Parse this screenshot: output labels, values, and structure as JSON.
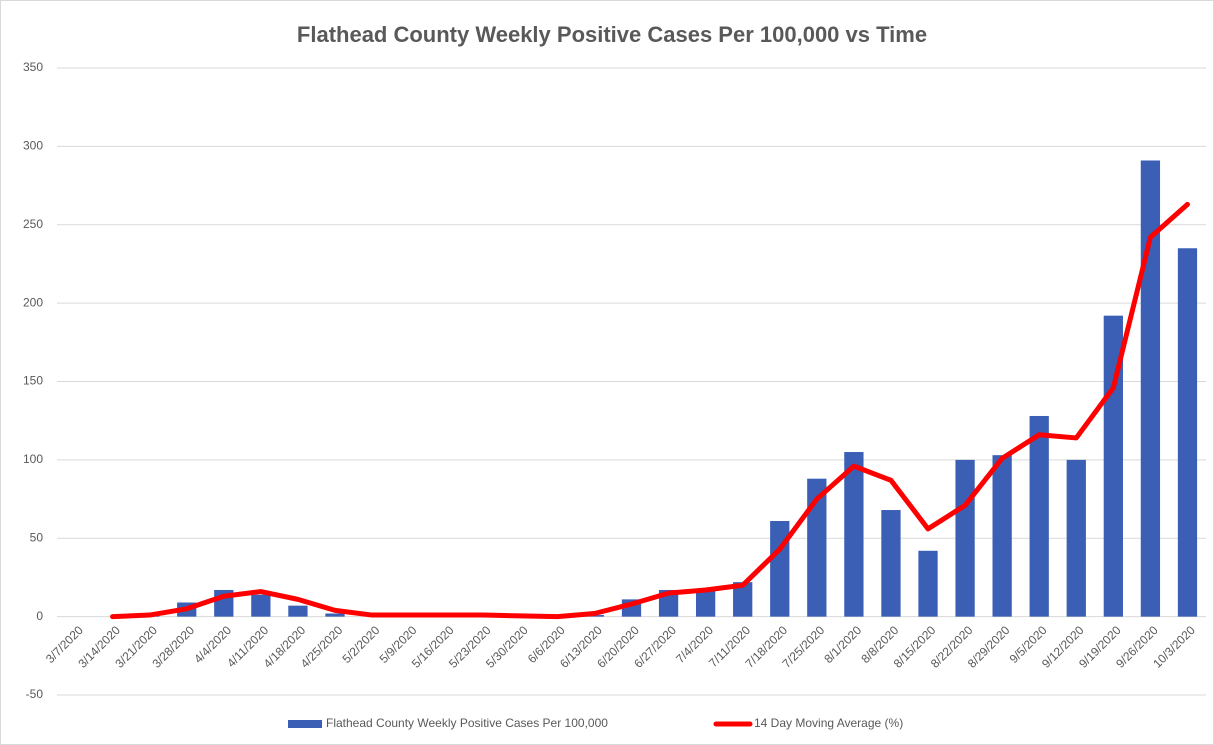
{
  "chart_data": {
    "type": "bar+line",
    "title": "Flathead County Weekly Positive Cases Per 100,000 vs Time",
    "categories": [
      "3/7/2020",
      "3/14/2020",
      "3/21/2020",
      "3/28/2020",
      "4/4/2020",
      "4/11/2020",
      "4/18/2020",
      "4/25/2020",
      "5/2/2020",
      "5/9/2020",
      "5/16/2020",
      "5/23/2020",
      "5/30/2020",
      "6/6/2020",
      "6/13/2020",
      "6/20/2020",
      "6/27/2020",
      "7/4/2020",
      "7/11/2020",
      "7/18/2020",
      "7/25/2020",
      "8/1/2020",
      "8/8/2020",
      "8/15/2020",
      "8/22/2020",
      "8/29/2020",
      "9/5/2020",
      "9/12/2020",
      "9/19/2020",
      "9/26/2020",
      "10/3/2020"
    ],
    "series": [
      {
        "name": "Flathead County Weekly Positive Cases Per 100,000",
        "type": "bar",
        "color": "#3a5fb5",
        "values": [
          0,
          0,
          1,
          9,
          17,
          14,
          7,
          2,
          0,
          0.5,
          0.5,
          0,
          0,
          0,
          1,
          11,
          17,
          17,
          22,
          61,
          88,
          105,
          68,
          42,
          100,
          103,
          128,
          100,
          192,
          291,
          235
        ]
      },
      {
        "name": "14 Day Moving Average (%)",
        "type": "line",
        "color": "#ff0000",
        "values": [
          null,
          0,
          1,
          5,
          13,
          16,
          11,
          4,
          1,
          1,
          1,
          1,
          0.5,
          0,
          2,
          8,
          15,
          17,
          20,
          43,
          75,
          96,
          87,
          56,
          71,
          101,
          116,
          114,
          146,
          242,
          263
        ]
      }
    ],
    "ylim": [
      -50,
      350
    ],
    "yticks": [
      -50,
      0,
      50,
      100,
      150,
      200,
      250,
      300,
      350
    ],
    "grid": true,
    "legend": "bottom"
  }
}
